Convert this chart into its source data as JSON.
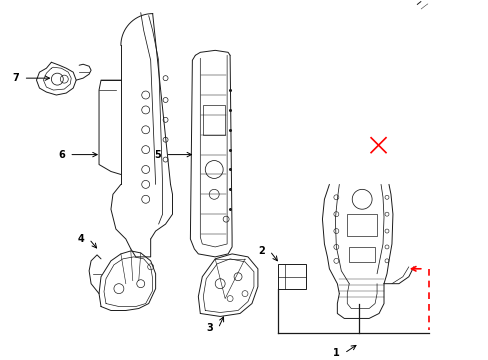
{
  "background_color": "#ffffff",
  "fig_width": 4.89,
  "fig_height": 3.6,
  "dpi": 100,
  "red_color": "#ff0000",
  "black_color": "#000000",
  "line_color": "#1a1a1a"
}
